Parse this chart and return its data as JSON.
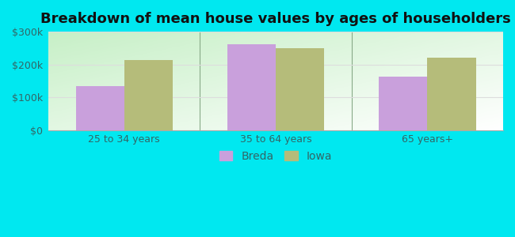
{
  "title": "Breakdown of mean house values by ages of householders",
  "categories": [
    "25 to 34 years",
    "35 to 64 years",
    "65 years+"
  ],
  "breda_values": [
    135000,
    262000,
    163000
  ],
  "iowa_values": [
    213000,
    250000,
    222000
  ],
  "breda_color": "#c9a0dc",
  "iowa_color": "#b5bc7a",
  "background_outer": "#00e8f0",
  "background_inner_top": "#ffffff",
  "background_inner_bottom": "#c8efc8",
  "ylim": [
    0,
    300000
  ],
  "yticks": [
    0,
    100000,
    200000,
    300000
  ],
  "ytick_labels": [
    "$0",
    "$100k",
    "$200k",
    "$300k"
  ],
  "bar_width": 0.32,
  "legend_labels": [
    "Breda",
    "Iowa"
  ],
  "title_fontsize": 13,
  "tick_fontsize": 9,
  "legend_fontsize": 10,
  "group_separator_color": "#aaccaa",
  "grid_color": "#dddddd"
}
